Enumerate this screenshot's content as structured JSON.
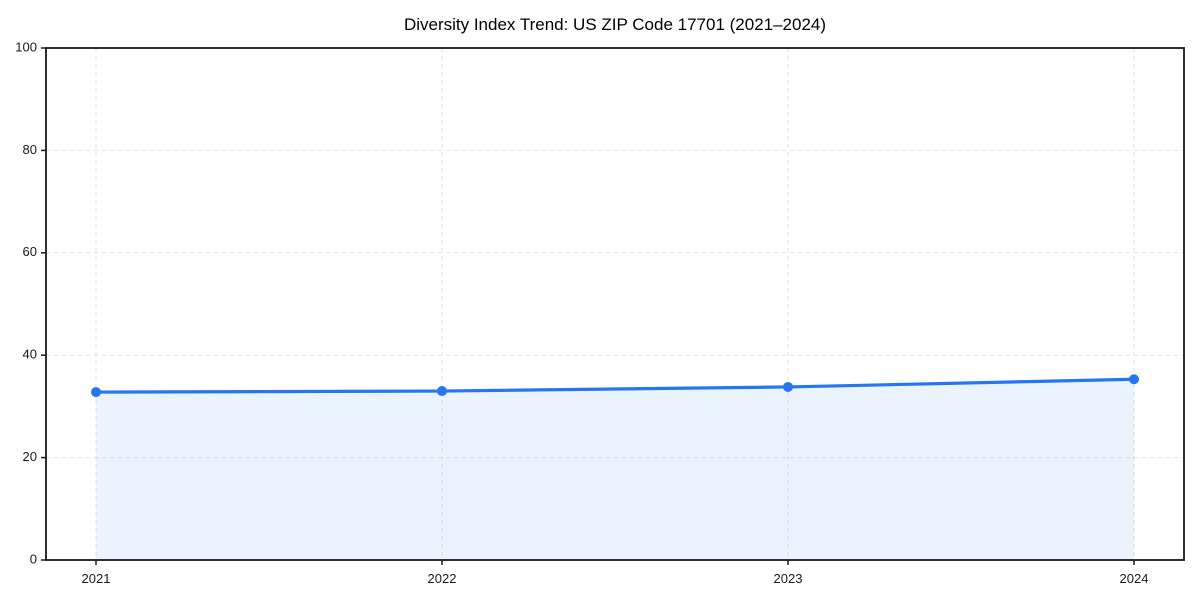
{
  "chart_data": {
    "type": "area",
    "title": "Diversity Index Trend: US ZIP Code 17701 (2021–2024)",
    "categories": [
      "2021",
      "2022",
      "2023",
      "2024"
    ],
    "series": [
      {
        "name": "Diversity Index",
        "values": [
          32.8,
          33.0,
          33.8,
          35.3
        ]
      }
    ],
    "xlabel": "",
    "ylabel": "",
    "ylim": [
      0,
      100
    ],
    "yticks": [
      0,
      20,
      40,
      60,
      80,
      100
    ],
    "grid": "dashed-both-axes",
    "legend": "none",
    "marker": "circle",
    "colors": {
      "line": "#2576f0",
      "marker": "#2576f0",
      "area_fill": "#2576f0",
      "area_fill_opacity": 0.09,
      "grid": "#e2e2e2",
      "axis": "#1a1a1a",
      "tick_label": "#1a1a1a",
      "title": "#000000",
      "background": "#ffffff"
    }
  }
}
